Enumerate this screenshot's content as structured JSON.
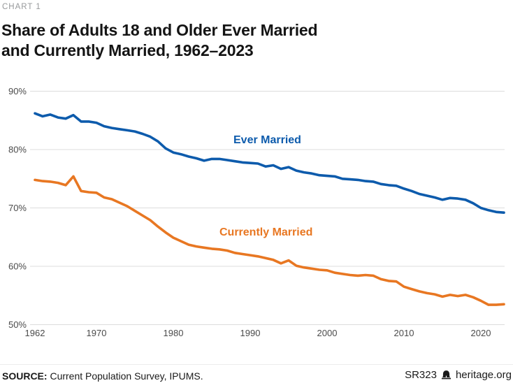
{
  "page": {
    "kicker": "CHART 1",
    "title_lines": [
      "Share of Adults 18 and Older Ever Married",
      "and Currently Married, 1962–2023"
    ]
  },
  "chart_data": {
    "type": "line",
    "title": "Share of Adults 18 and Older Ever Married and Currently Married, 1962–2023",
    "xlabel": "",
    "ylabel": "",
    "y_unit": "%",
    "xlim": [
      1962,
      2023
    ],
    "ylim": [
      50,
      90
    ],
    "grid": "horizontal",
    "grid_color": "#dcdcdc",
    "tick_color": "#4b4b4b",
    "legend_position": "inline-labels",
    "x_ticks": [
      {
        "label": "1962",
        "value": 1962
      },
      {
        "label": "1970",
        "value": 1970
      },
      {
        "label": "1980",
        "value": 1980
      },
      {
        "label": "1990",
        "value": 1990
      },
      {
        "label": "2000",
        "value": 2000
      },
      {
        "label": "2010",
        "value": 2010
      },
      {
        "label": "2020",
        "value": 2020
      }
    ],
    "y_ticks": [
      {
        "label": "90%",
        "value": 90
      },
      {
        "label": "80%",
        "value": 80
      },
      {
        "label": "70%",
        "value": 70
      },
      {
        "label": "60%",
        "value": 60
      },
      {
        "label": "50%",
        "value": 50
      }
    ],
    "x": [
      1962,
      1963,
      1964,
      1965,
      1966,
      1967,
      1968,
      1969,
      1970,
      1971,
      1972,
      1973,
      1974,
      1975,
      1976,
      1977,
      1978,
      1979,
      1980,
      1981,
      1982,
      1983,
      1984,
      1985,
      1986,
      1987,
      1988,
      1989,
      1990,
      1991,
      1992,
      1993,
      1994,
      1995,
      1996,
      1997,
      1998,
      1999,
      2000,
      2001,
      2002,
      2003,
      2004,
      2005,
      2006,
      2007,
      2008,
      2009,
      2010,
      2011,
      2012,
      2013,
      2014,
      2015,
      2016,
      2017,
      2018,
      2019,
      2020,
      2021,
      2022,
      2023
    ],
    "series": [
      {
        "key": "ever-married",
        "name": "Ever Married",
        "color": "#0d5bac",
        "values": [
          86.2,
          85.7,
          86.0,
          85.5,
          85.3,
          85.9,
          84.8,
          84.8,
          84.6,
          84.0,
          83.7,
          83.5,
          83.3,
          83.1,
          82.7,
          82.2,
          81.4,
          80.2,
          79.5,
          79.2,
          78.8,
          78.5,
          78.1,
          78.4,
          78.4,
          78.2,
          78.0,
          77.8,
          77.7,
          77.6,
          77.1,
          77.3,
          76.7,
          77.0,
          76.4,
          76.1,
          75.9,
          75.6,
          75.5,
          75.4,
          75.0,
          74.9,
          74.8,
          74.6,
          74.5,
          74.1,
          73.9,
          73.8,
          73.3,
          72.9,
          72.4,
          72.1,
          71.8,
          71.4,
          71.7,
          71.6,
          71.4,
          70.8,
          70.0,
          69.6,
          69.3,
          69.2
        ]
      },
      {
        "key": "currently-married",
        "name": "Currently Married",
        "color": "#e87722",
        "values": [
          74.8,
          74.6,
          74.5,
          74.3,
          73.9,
          75.4,
          72.9,
          72.7,
          72.6,
          71.8,
          71.5,
          70.9,
          70.3,
          69.5,
          68.7,
          67.9,
          66.8,
          65.8,
          64.9,
          64.3,
          63.7,
          63.4,
          63.2,
          63.0,
          62.9,
          62.7,
          62.3,
          62.1,
          61.9,
          61.7,
          61.4,
          61.1,
          60.5,
          61.0,
          60.1,
          59.8,
          59.6,
          59.4,
          59.3,
          58.9,
          58.7,
          58.5,
          58.4,
          58.5,
          58.4,
          57.8,
          57.5,
          57.4,
          56.5,
          56.1,
          55.7,
          55.4,
          55.2,
          54.8,
          55.1,
          54.9,
          55.1,
          54.7,
          54.1,
          53.4,
          53.4,
          53.5
        ]
      }
    ]
  },
  "footer": {
    "source_label": "SOURCE:",
    "source_text": " Current Population Survey, IPUMS.",
    "report_id": "SR323",
    "site": "heritage.org"
  }
}
